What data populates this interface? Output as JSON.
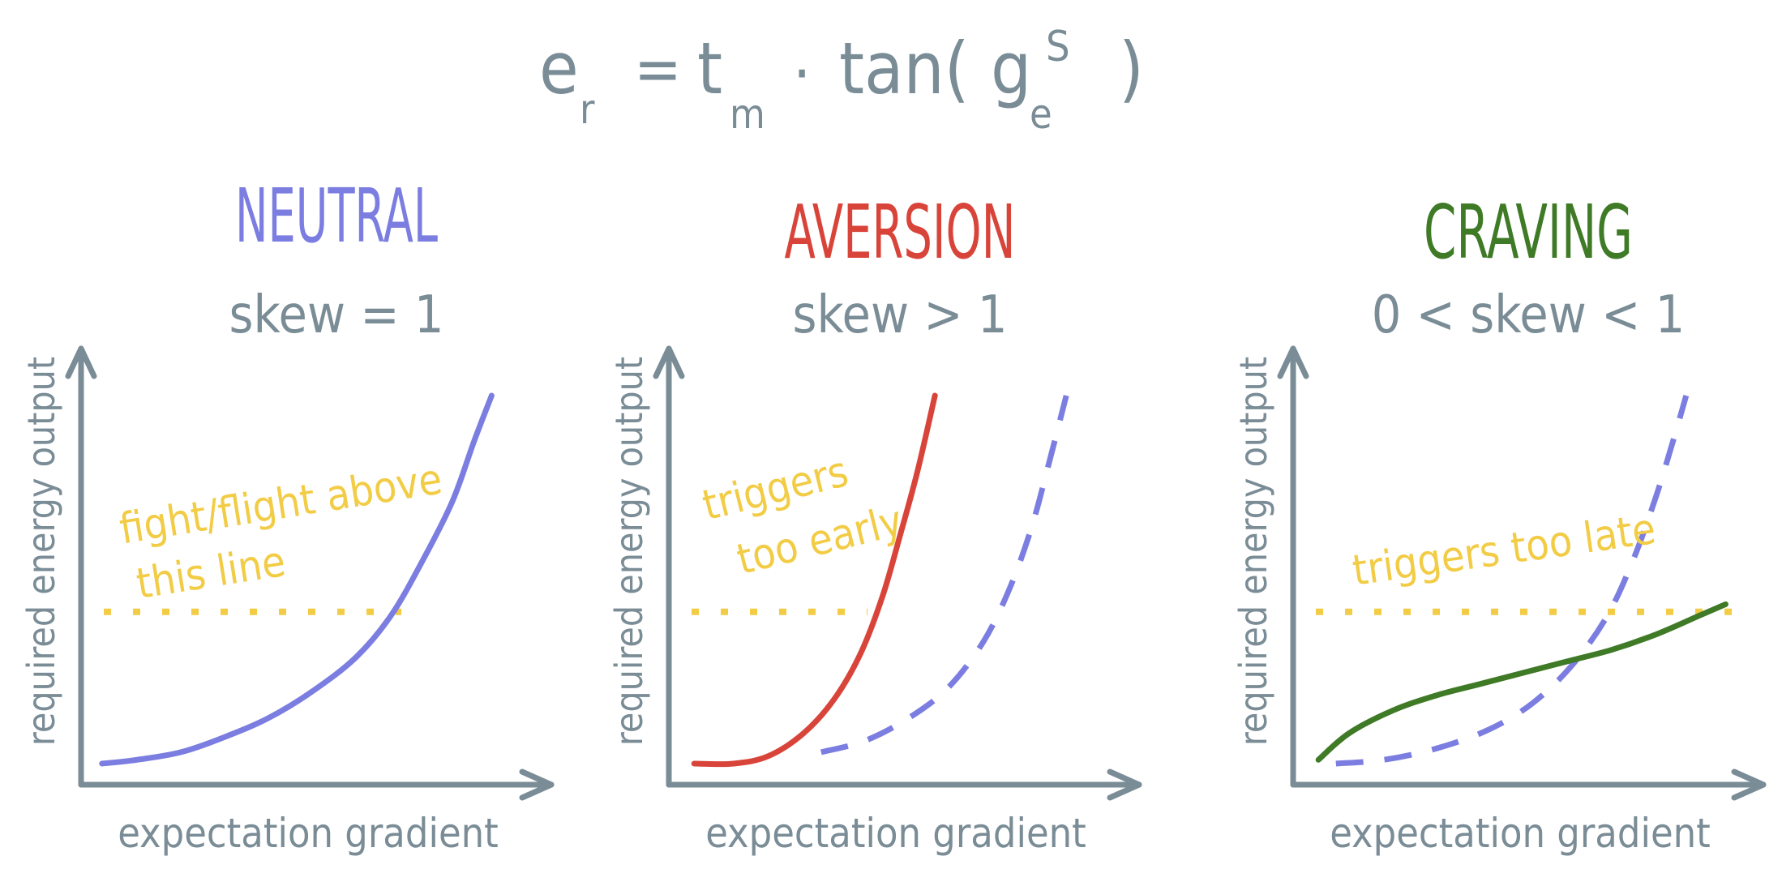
{
  "formula": {
    "e": "e",
    "r": "r",
    "eq": "=",
    "t": "t",
    "m": "m",
    "dot": "·",
    "tan": "tan(",
    "g": "g",
    "sub_e": "e",
    "sup_s": "S",
    "close": ")"
  },
  "colors": {
    "ink": "#7a8c96",
    "neutral": "#7b7ee0",
    "aversion": "#d9443a",
    "craving": "#3f7a26",
    "threshold": "#f2cc45"
  },
  "panels": [
    {
      "title": "NEUTRAL",
      "subtitle": "skew = 1",
      "ylabel": "required energy output",
      "xlabel": "expectation gradient",
      "note": [
        "fight/flight above",
        "this line"
      ],
      "threshold": 0.43,
      "curves": [
        {
          "style": "solid",
          "color": "neutral",
          "points": [
            [
              0.02,
              0.03
            ],
            [
              0.1,
              0.04
            ],
            [
              0.2,
              0.06
            ],
            [
              0.3,
              0.1
            ],
            [
              0.4,
              0.15
            ],
            [
              0.5,
              0.22
            ],
            [
              0.6,
              0.31
            ],
            [
              0.68,
              0.42
            ],
            [
              0.75,
              0.56
            ],
            [
              0.82,
              0.72
            ],
            [
              0.87,
              0.88
            ],
            [
              0.91,
              1.0
            ]
          ]
        }
      ]
    },
    {
      "title": "AVERSION",
      "subtitle": "skew > 1",
      "ylabel": "required energy output",
      "xlabel": "expectation gradient",
      "note": [
        "triggers",
        "too early"
      ],
      "threshold": 0.43,
      "curves": [
        {
          "style": "solid",
          "color": "aversion",
          "points": [
            [
              0.03,
              0.03
            ],
            [
              0.12,
              0.03
            ],
            [
              0.2,
              0.05
            ],
            [
              0.28,
              0.11
            ],
            [
              0.35,
              0.2
            ],
            [
              0.41,
              0.32
            ],
            [
              0.46,
              0.47
            ],
            [
              0.5,
              0.63
            ],
            [
              0.54,
              0.8
            ],
            [
              0.58,
              1.0
            ]
          ]
        },
        {
          "style": "dashed",
          "color": "neutral",
          "points": [
            [
              0.32,
              0.06
            ],
            [
              0.42,
              0.09
            ],
            [
              0.52,
              0.15
            ],
            [
              0.61,
              0.23
            ],
            [
              0.69,
              0.35
            ],
            [
              0.75,
              0.49
            ],
            [
              0.8,
              0.65
            ],
            [
              0.84,
              0.82
            ],
            [
              0.88,
              1.0
            ]
          ]
        }
      ]
    },
    {
      "title": "CRAVING",
      "subtitle": "0 < skew < 1",
      "ylabel": "required energy output",
      "xlabel": "expectation gradient",
      "note": [
        "triggers too late"
      ],
      "threshold": 0.43,
      "curves": [
        {
          "style": "dashed",
          "color": "neutral",
          "points": [
            [
              0.07,
              0.03
            ],
            [
              0.18,
              0.04
            ],
            [
              0.3,
              0.07
            ],
            [
              0.42,
              0.12
            ],
            [
              0.52,
              0.19
            ],
            [
              0.61,
              0.29
            ],
            [
              0.69,
              0.42
            ],
            [
              0.75,
              0.57
            ],
            [
              0.8,
              0.73
            ],
            [
              0.84,
              0.88
            ],
            [
              0.87,
              1.0
            ]
          ]
        },
        {
          "style": "solid",
          "color": "craving",
          "points": [
            [
              0.03,
              0.04
            ],
            [
              0.1,
              0.11
            ],
            [
              0.2,
              0.17
            ],
            [
              0.3,
              0.21
            ],
            [
              0.4,
              0.24
            ],
            [
              0.5,
              0.27
            ],
            [
              0.6,
              0.3
            ],
            [
              0.7,
              0.33
            ],
            [
              0.8,
              0.37
            ],
            [
              0.9,
              0.42
            ],
            [
              0.96,
              0.45
            ]
          ]
        }
      ]
    }
  ]
}
